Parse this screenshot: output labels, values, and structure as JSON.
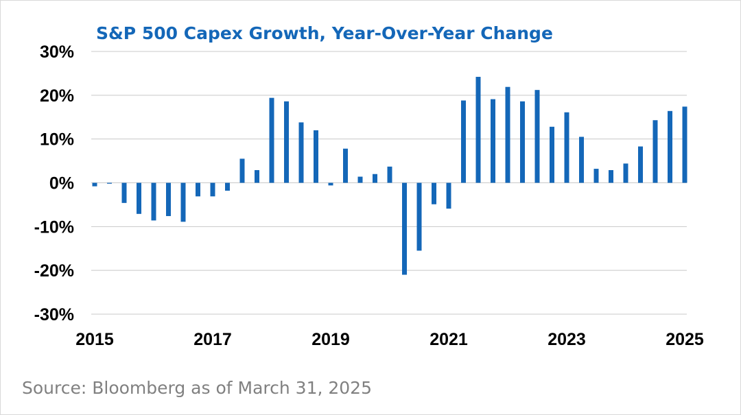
{
  "colors": {
    "bar": "#1467b8",
    "title": "#1467b8"
  },
  "source_note": "Source: Bloomberg as of March 31, 2025",
  "chart_data": {
    "type": "bar",
    "title": "S&P 500 Capex Growth, Year-Over-Year Change",
    "xlabel": "",
    "ylabel": "",
    "ylim": [
      -30,
      30
    ],
    "yticks": [
      30,
      20,
      10,
      0,
      -10,
      -20,
      -30
    ],
    "ytick_labels": [
      "30%",
      "20%",
      "10%",
      "0%",
      "-10%",
      "-20%",
      "-30%"
    ],
    "x_tick_labels": [
      "2015",
      "2017",
      "2019",
      "2021",
      "2023",
      "2025"
    ],
    "x_range": [
      2015,
      2025
    ],
    "grid": true,
    "legend": "none",
    "points": [
      {
        "x": 2015.0,
        "value": -0.8
      },
      {
        "x": 2015.25,
        "value": -0.2
      },
      {
        "x": 2015.5,
        "value": -4.6
      },
      {
        "x": 2015.75,
        "value": -7.1
      },
      {
        "x": 2016.0,
        "value": -8.6
      },
      {
        "x": 2016.25,
        "value": -7.6
      },
      {
        "x": 2016.5,
        "value": -8.9
      },
      {
        "x": 2016.75,
        "value": -3.1
      },
      {
        "x": 2017.0,
        "value": -3.1
      },
      {
        "x": 2017.25,
        "value": -1.8
      },
      {
        "x": 2017.5,
        "value": 5.5
      },
      {
        "x": 2017.75,
        "value": 2.9
      },
      {
        "x": 2018.0,
        "value": 19.4
      },
      {
        "x": 2018.25,
        "value": 18.6
      },
      {
        "x": 2018.5,
        "value": 13.8
      },
      {
        "x": 2018.75,
        "value": 12.0
      },
      {
        "x": 2019.0,
        "value": -0.6
      },
      {
        "x": 2019.25,
        "value": 7.8
      },
      {
        "x": 2019.5,
        "value": 1.4
      },
      {
        "x": 2019.75,
        "value": 2.0
      },
      {
        "x": 2020.0,
        "value": 3.7
      },
      {
        "x": 2020.25,
        "value": -21.0
      },
      {
        "x": 2020.5,
        "value": -15.5
      },
      {
        "x": 2020.75,
        "value": -4.9
      },
      {
        "x": 2021.0,
        "value": -5.9
      },
      {
        "x": 2021.25,
        "value": 18.8
      },
      {
        "x": 2021.5,
        "value": 24.2
      },
      {
        "x": 2021.75,
        "value": 19.1
      },
      {
        "x": 2022.0,
        "value": 21.9
      },
      {
        "x": 2022.25,
        "value": 18.6
      },
      {
        "x": 2022.5,
        "value": 21.2
      },
      {
        "x": 2022.75,
        "value": 12.8
      },
      {
        "x": 2023.0,
        "value": 16.1
      },
      {
        "x": 2023.25,
        "value": 10.5
      },
      {
        "x": 2023.5,
        "value": 3.2
      },
      {
        "x": 2023.75,
        "value": 2.9
      },
      {
        "x": 2024.0,
        "value": 4.4
      },
      {
        "x": 2024.25,
        "value": 8.3
      },
      {
        "x": 2024.5,
        "value": 14.3
      },
      {
        "x": 2024.75,
        "value": 16.4
      },
      {
        "x": 2025.0,
        "value": 17.4
      }
    ]
  }
}
